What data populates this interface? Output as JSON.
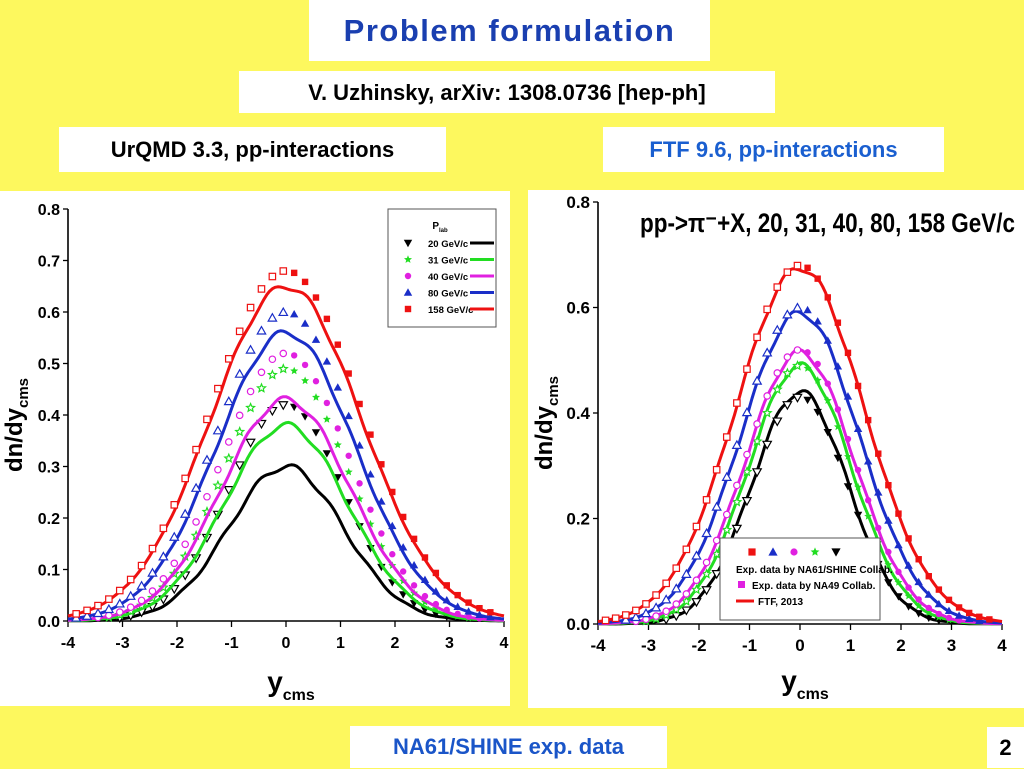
{
  "slide": {
    "title": "Problem formulation",
    "reference": "V. Uzhinsky, arXiv: 1308.0736 [hep-ph]",
    "left_label": "UrQMD 3.3, pp-interactions",
    "right_label": "FTF 9.6, pp-interactions",
    "footer": "NA61/SHINE exp. data",
    "page_number": "2"
  },
  "colors": {
    "background": "#fdf85e",
    "title": "#1a3fb0",
    "right_label": "#1a5fd0",
    "footer": "#1a55c8"
  },
  "chart_data": [
    {
      "type": "line",
      "ylabel_main": "dn/dy",
      "ylabel_sub": "cms",
      "xlabel_main": "y",
      "xlabel_sub": "cms",
      "xlim": [
        -4,
        4
      ],
      "ylim": [
        0,
        0.8
      ],
      "x_ticks": [
        "-4",
        "-3",
        "-2",
        "-1",
        "0",
        "1",
        "2",
        "3",
        "4"
      ],
      "y_ticks": [
        "0.0",
        "0.1",
        "0.2",
        "0.3",
        "0.4",
        "0.5",
        "0.6",
        "0.7",
        "0.8"
      ],
      "legend_title": "P",
      "legend_title_sub": "lab",
      "legend_position": "top-right",
      "series": [
        {
          "name": "20 GeV/c",
          "color": "#000000",
          "marker": "triangle-down",
          "sigma": 1.05,
          "model_peak": 0.3,
          "data_peak": 0.42
        },
        {
          "name": "31 GeV/c",
          "color": "#22dd22",
          "marker": "star",
          "sigma": 1.12,
          "model_peak": 0.38,
          "data_peak": 0.49
        },
        {
          "name": "40 GeV/c",
          "color": "#e020e0",
          "marker": "circle",
          "sigma": 1.17,
          "model_peak": 0.43,
          "data_peak": 0.52
        },
        {
          "name": "80 GeV/c",
          "color": "#1a2ec8",
          "marker": "triangle-up",
          "sigma": 1.27,
          "model_peak": 0.56,
          "data_peak": 0.6
        },
        {
          "name": "158 GeV/c",
          "color": "#ee1111",
          "marker": "square",
          "sigma": 1.38,
          "model_peak": 0.65,
          "data_peak": 0.68
        }
      ]
    },
    {
      "type": "line",
      "title": "pp->π⁻+X, 20, 31, 40, 80, 158 GeV/c",
      "ylabel_main": "dn/dy",
      "ylabel_sub": "cms",
      "xlabel_main": "y",
      "xlabel_sub": "cms",
      "xlim": [
        -4,
        4
      ],
      "ylim": [
        0,
        0.8
      ],
      "x_ticks": [
        "-4",
        "-3",
        "-2",
        "-1",
        "0",
        "1",
        "2",
        "3",
        "4"
      ],
      "y_ticks": [
        "0.0",
        "0.2",
        "0.4",
        "0.6",
        "0.8"
      ],
      "legend_position": "bottom-right",
      "legend_entries": [
        "Exp. data by NA61/SHINE Collab.",
        "Exp. data by NA49 Collab.",
        "FTF, 2013"
      ],
      "series": [
        {
          "name": "20 GeV/c",
          "color": "#000000",
          "marker": "triangle-down",
          "sigma": 0.95,
          "model_peak": 0.44,
          "data_peak": 0.43
        },
        {
          "name": "31 GeV/c",
          "color": "#22dd22",
          "marker": "star",
          "sigma": 1.02,
          "model_peak": 0.49,
          "data_peak": 0.49
        },
        {
          "name": "40 GeV/c",
          "color": "#e020e0",
          "marker": "circle",
          "sigma": 1.07,
          "model_peak": 0.515,
          "data_peak": 0.52
        },
        {
          "name": "80 GeV/c",
          "color": "#1a2ec8",
          "marker": "triangle-up",
          "sigma": 1.17,
          "model_peak": 0.59,
          "data_peak": 0.6
        },
        {
          "name": "158 GeV/c",
          "color": "#ee1111",
          "marker": "square",
          "sigma": 1.27,
          "model_peak": 0.675,
          "data_peak": 0.68
        }
      ]
    }
  ]
}
